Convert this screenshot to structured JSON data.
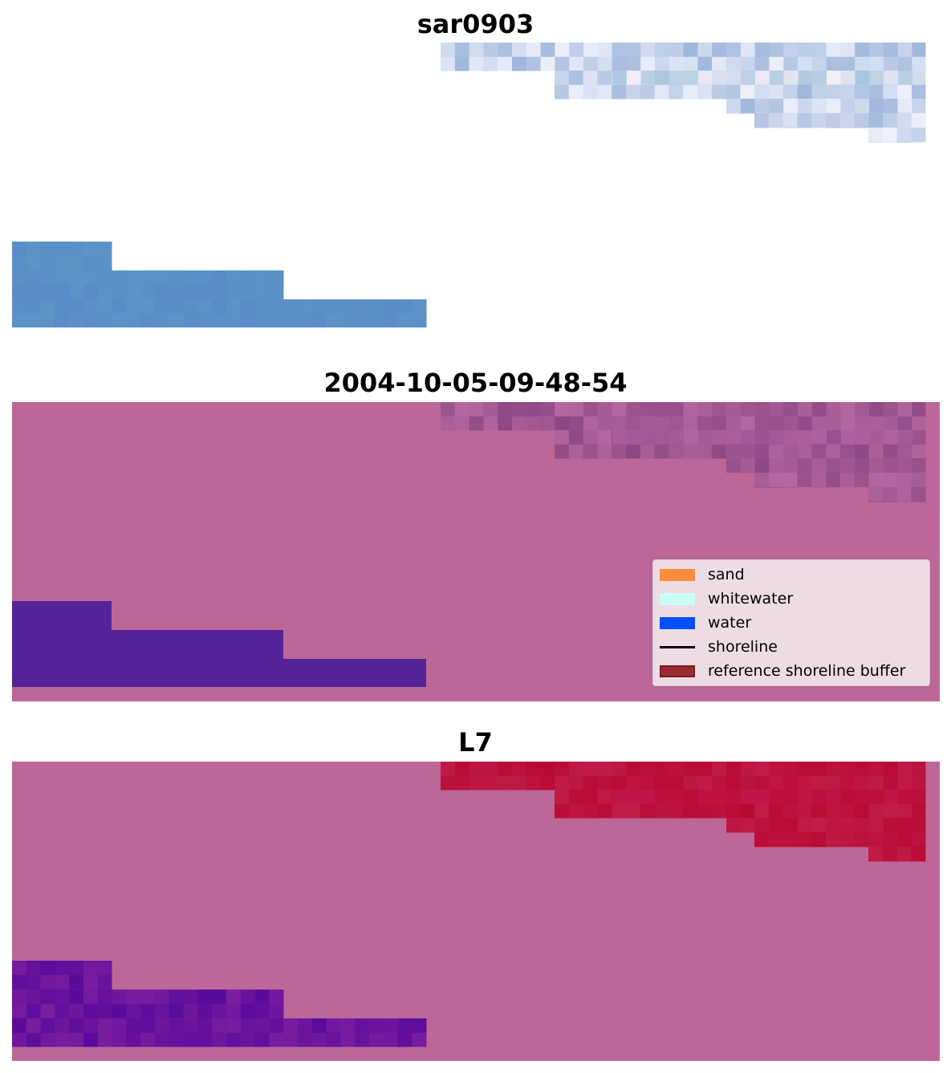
{
  "panels": [
    {
      "title": "sar0903",
      "style": "rgb"
    },
    {
      "title": "2004-10-05-09-48-54",
      "style": "classified"
    },
    {
      "title": "L7",
      "style": "index"
    }
  ],
  "legend": {
    "items": [
      {
        "label": "sand",
        "color": "#ff8c3c",
        "kind": "patch"
      },
      {
        "label": "whitewater",
        "color": "#c8fff8",
        "kind": "patch"
      },
      {
        "label": "water",
        "color": "#0050ff",
        "kind": "patch"
      },
      {
        "label": "shoreline",
        "color": "#000000",
        "kind": "line"
      },
      {
        "label": "reference shoreline buffer",
        "color": "#9a2c30",
        "kind": "patch"
      }
    ]
  },
  "colors": {
    "background_index": "#bc6797",
    "water_classified": "#552498",
    "sea_rgb": "#5a93c4",
    "land_rgb": "#a7bfdc"
  }
}
